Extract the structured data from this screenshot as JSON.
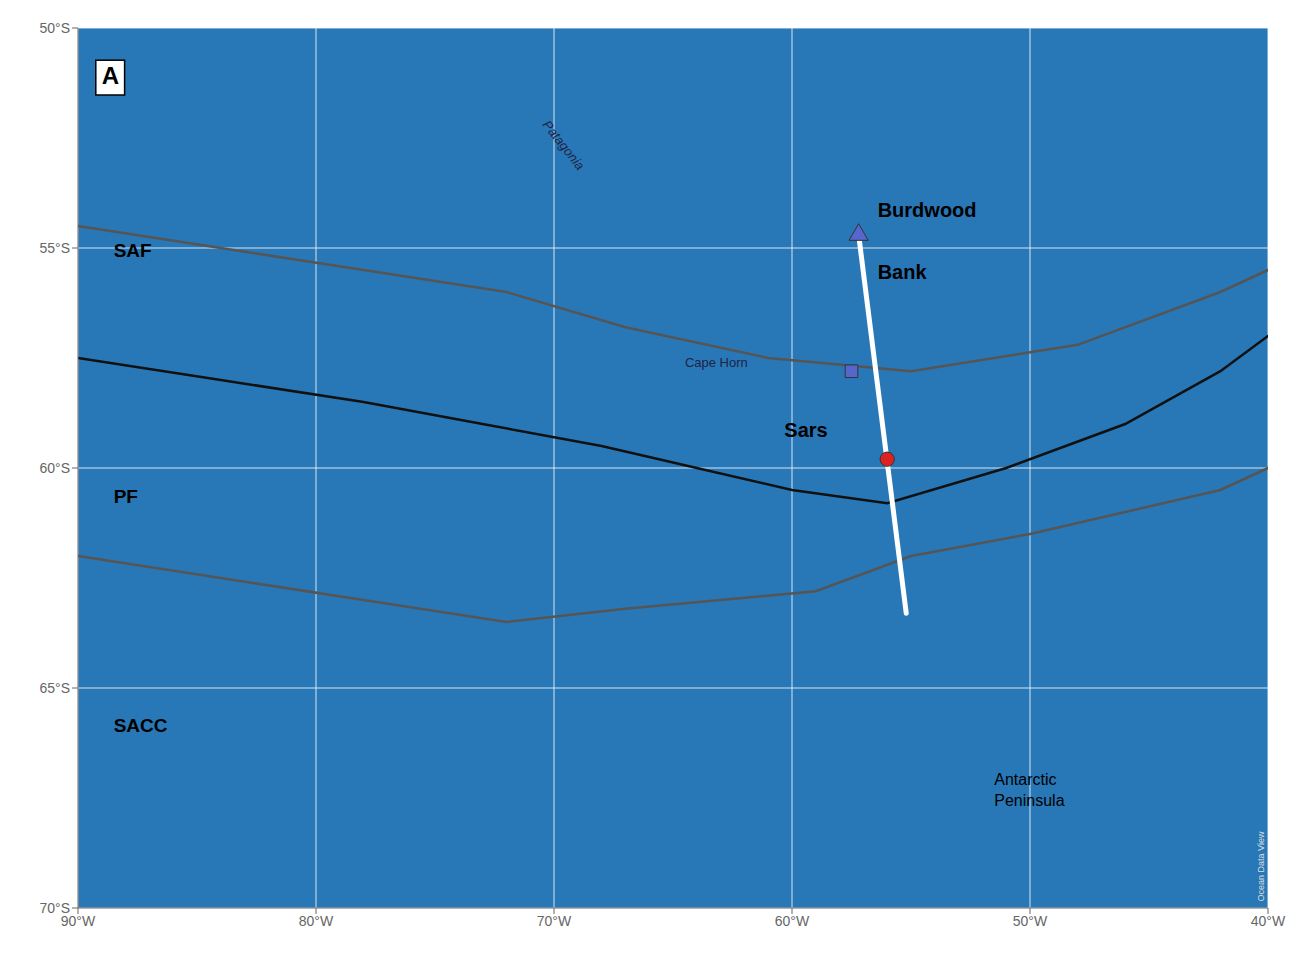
{
  "chart_data": {
    "type": "line",
    "xlim": [
      -90,
      -40
    ],
    "ylim": [
      -70,
      -50
    ],
    "xticks": [
      {
        "value": -90,
        "label": "90°W"
      },
      {
        "value": -80,
        "label": "80°W"
      },
      {
        "value": -70,
        "label": "70°W"
      },
      {
        "value": -60,
        "label": "60°W"
      },
      {
        "value": -50,
        "label": "50°W"
      },
      {
        "value": -40,
        "label": "40°W"
      }
    ],
    "yticks": [
      {
        "value": -50,
        "label": "50°S"
      },
      {
        "value": -55,
        "label": "55°S"
      },
      {
        "value": -60,
        "label": "60°S"
      },
      {
        "value": -65,
        "label": "65°S"
      },
      {
        "value": -70,
        "label": "70°S"
      }
    ],
    "grid": true,
    "series": [
      {
        "type": "line",
        "color": "#555555",
        "x": [
          -90,
          -84,
          -78,
          -72,
          -67,
          -61,
          -55,
          -48,
          -42,
          -40
        ],
        "values": [
          -54.5,
          -55.0,
          -55.5,
          -56.0,
          -56.8,
          -57.5,
          -57.8,
          -57.2,
          -56.0,
          -55.5
        ]
      },
      {
        "type": "line",
        "color": "#111111",
        "x": [
          -90,
          -84,
          -78,
          -73,
          -68,
          -64,
          -60,
          -56,
          -51,
          -46,
          -42,
          -40
        ],
        "values": [
          -57.5,
          -58.0,
          -58.5,
          -59.0,
          -59.5,
          -60.0,
          -60.5,
          -60.8,
          -60.0,
          -59.0,
          -57.8,
          -57.0
        ]
      },
      {
        "type": "line",
        "color": "#555555",
        "x": [
          -90,
          -84,
          -78,
          -72,
          -67,
          -63,
          -59,
          -55,
          -50,
          -46,
          -42,
          -40
        ],
        "values": [
          -62.0,
          -62.5,
          -63.0,
          -63.5,
          -63.2,
          -63.0,
          -62.8,
          -62.0,
          -61.5,
          -61.0,
          -60.5,
          -60.0
        ]
      },
      {
        "type": "line",
        "color": "#ffffff",
        "x": [
          -57.2,
          -55.2
        ],
        "values": [
          -54.7,
          -63.3
        ]
      },
      {
        "type": "scatter",
        "color": "#dd2222",
        "marker": "circle",
        "x": [
          -56.0
        ],
        "values": [
          -59.8
        ]
      },
      {
        "type": "scatter",
        "color": "#5566cc",
        "marker": "square",
        "x": [
          -57.5
        ],
        "values": [
          -57.8
        ]
      },
      {
        "type": "scatter",
        "color": "#5566cc",
        "marker": "triangle",
        "x": [
          -57.2
        ],
        "values": [
          -54.7
        ]
      }
    ],
    "annotations": [
      {
        "text": "A",
        "x": -89,
        "y": -50.8
      },
      {
        "text": "Sars",
        "x": -58.5,
        "y": -59.3
      },
      {
        "text": "Cape Horn",
        "x": -64.5,
        "y": -57.7
      },
      {
        "text": "Burdwood",
        "x": -56.4,
        "y": -54.3
      },
      {
        "text": "Bank",
        "x": -56.4,
        "y": -55.7
      },
      {
        "text": "Patagonia",
        "x": -70.5,
        "y": -52.2
      },
      {
        "text": "Antarctic\nPeninsula",
        "x": -51.5,
        "y": -67.2
      },
      {
        "text": "SAF",
        "x": -88.5,
        "y": -55.2
      },
      {
        "text": "PF",
        "x": -88.5,
        "y": -60.8
      },
      {
        "text": "SACC",
        "x": -88.5,
        "y": -66.0
      },
      {
        "text": "Ocean Data View",
        "x": -40.15,
        "y": -69.85
      }
    ]
  }
}
